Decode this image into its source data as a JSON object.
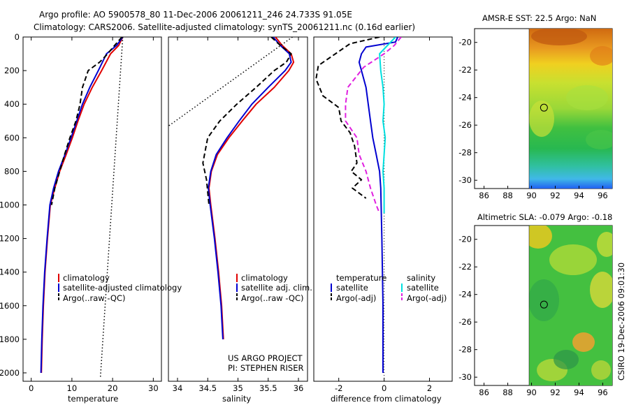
{
  "header": {
    "title_line1": "Argo profile: AO 5900578_80 11-Dec-2006 20061211_246 24.733S 91.05E",
    "title_line2": "Climatology: CARS2006. Satellite-adjusted climatology: synTS_20061211.nc (0.16d earlier)"
  },
  "side_stamp": "CSIRO 19-Dec-2006 09:01:30",
  "project_credit": [
    "US ARGO PROJECT",
    "PI: STEPHEN RISER"
  ],
  "colors": {
    "climatology": "#e00000",
    "satellite": "#0000d0",
    "argo": "#000000",
    "sal_satellite": "#00e0e0",
    "sal_argo": "#e020e0"
  },
  "chart_data": [
    {
      "id": "temperature",
      "type": "line",
      "xlabel": "temperature",
      "ylabel": "",
      "xlim": [
        -2,
        32
      ],
      "ylim": [
        2050,
        0
      ],
      "xticks": [
        0,
        10,
        20,
        30
      ],
      "yticks": [
        0,
        200,
        400,
        600,
        800,
        1000,
        1200,
        1400,
        1600,
        1800,
        2000
      ],
      "legend": [
        "climatology",
        "satellite-adjusted climatology",
        "Argo(..raw -QC)"
      ],
      "legend_placement": "lower-left",
      "series": [
        {
          "name": "climatology",
          "style": "solid",
          "color": "#e00000",
          "x": [
            22.5,
            21.5,
            19.5,
            17.3,
            15.0,
            13.0,
            11.5,
            10.1,
            8.6,
            7.0,
            5.8,
            4.7,
            4.0,
            3.4,
            3.0,
            2.7,
            2.5
          ],
          "y": [
            0,
            50,
            100,
            200,
            300,
            400,
            500,
            600,
            700,
            800,
            900,
            1000,
            1200,
            1400,
            1600,
            1800,
            2000
          ]
        },
        {
          "name": "satellite-adjusted climatology",
          "style": "solid",
          "color": "#0000d0",
          "x": [
            22.5,
            21.0,
            18.5,
            16.5,
            14.4,
            12.6,
            11.2,
            9.8,
            8.3,
            6.7,
            5.5,
            4.6,
            3.9,
            3.3,
            2.9,
            2.6,
            2.4
          ],
          "y": [
            0,
            50,
            100,
            200,
            300,
            400,
            500,
            600,
            700,
            800,
            900,
            1000,
            1200,
            1400,
            1600,
            1800,
            2000
          ]
        },
        {
          "name": "Argo(..raw -QC)",
          "style": "dashed",
          "color": "#000000",
          "x": [
            22.3,
            20.5,
            18.8,
            16.8,
            14.0,
            12.6,
            12.0,
            11.0,
            9.5,
            8.2,
            7.0,
            5.8,
            5.0
          ],
          "y": [
            0,
            50,
            100,
            150,
            200,
            300,
            400,
            500,
            600,
            700,
            800,
            900,
            1000
          ]
        },
        {
          "name": "surface-freezing reference",
          "style": "dotted",
          "color": "#000000",
          "x": [
            22.5,
            17.0
          ],
          "y": [
            0,
            2030
          ]
        }
      ]
    },
    {
      "id": "salinity",
      "type": "line",
      "xlabel": "salinity",
      "ylabel": "",
      "xlim": [
        33.85,
        36.15
      ],
      "ylim": [
        2050,
        0
      ],
      "xticks": [
        34,
        34.5,
        35,
        35.5,
        36
      ],
      "xtick_labels": [
        "34",
        "34.5",
        "35",
        "35.5",
        "36"
      ],
      "legend": [
        "climatology",
        "satellite adj. clim.",
        "Argo(..raw -QC)"
      ],
      "legend_placement": "lower-left",
      "series": [
        {
          "name": "climatology",
          "style": "solid",
          "color": "#e00000",
          "x": [
            35.62,
            35.73,
            35.88,
            35.92,
            35.84,
            35.6,
            35.3,
            35.07,
            34.85,
            34.66,
            34.56,
            34.52,
            34.55,
            34.62,
            34.68,
            34.73,
            34.76
          ],
          "y": [
            0,
            50,
            100,
            150,
            200,
            300,
            400,
            500,
            600,
            700,
            800,
            900,
            1000,
            1200,
            1400,
            1600,
            1800
          ]
        },
        {
          "name": "satellite adj. clim.",
          "style": "solid",
          "color": "#0000d0",
          "x": [
            35.58,
            35.7,
            35.85,
            35.88,
            35.78,
            35.5,
            35.23,
            35.02,
            34.82,
            34.64,
            34.55,
            34.51,
            34.54,
            34.61,
            34.67,
            34.72,
            34.75
          ],
          "y": [
            0,
            50,
            100,
            150,
            200,
            300,
            400,
            500,
            600,
            700,
            800,
            900,
            1000,
            1200,
            1400,
            1600,
            1800
          ]
        },
        {
          "name": "Argo(..raw -QC)",
          "style": "dashed",
          "color": "#000000",
          "x": [
            35.55,
            35.7,
            35.88,
            35.8,
            35.6,
            35.3,
            34.98,
            34.7,
            34.5,
            34.42,
            34.48,
            34.52
          ],
          "y": [
            0,
            50,
            100,
            150,
            200,
            300,
            400,
            500,
            600,
            750,
            850,
            1000
          ]
        },
        {
          "name": "surface reference",
          "style": "dotted",
          "color": "#000000",
          "x": [
            35.9,
            33.85
          ],
          "y": [
            0,
            530
          ]
        }
      ]
    },
    {
      "id": "difference",
      "type": "line",
      "xlabel": "difference from climatology",
      "ylabel": "",
      "xlim": [
        -3.1,
        3.0
      ],
      "ylim": [
        2050,
        0
      ],
      "xticks": [
        -2,
        0,
        2
      ],
      "legend_left": [
        "temperature",
        "satellite",
        "Argo(-adj)"
      ],
      "legend_right": [
        "salinity",
        "satellite",
        "Argo(-adj)"
      ],
      "legend_placement": "lower-center",
      "series": [
        {
          "name": "temperature satellite",
          "style": "solid",
          "color": "#0000d0",
          "x": [
            0.6,
            0.5,
            -0.8,
            -1.0,
            -1.1,
            -1.0,
            -0.8,
            -0.7,
            -0.6,
            -0.5,
            -0.35,
            -0.2,
            -0.15,
            -0.1,
            -0.05,
            -0.05
          ],
          "y": [
            0,
            30,
            60,
            100,
            150,
            200,
            300,
            400,
            500,
            600,
            700,
            800,
            900,
            1200,
            1600,
            2000
          ]
        },
        {
          "name": "temperature Argo(-adj)",
          "style": "dashed",
          "color": "#000000",
          "x": [
            -0.2,
            -1.5,
            -2.9,
            -3.0,
            -2.7,
            -2.0,
            -1.9,
            -1.5,
            -1.3,
            -1.2,
            -1.45,
            -1.0,
            -1.4,
            -0.8
          ],
          "y": [
            0,
            40,
            170,
            250,
            350,
            420,
            500,
            570,
            650,
            750,
            800,
            850,
            900,
            960
          ]
        },
        {
          "name": "salinity satellite",
          "style": "solid",
          "color": "#00e0e0",
          "x": [
            0.5,
            0.15,
            -0.2,
            -0.15,
            -0.05,
            0.0,
            -0.05,
            0.05,
            0.0,
            -0.05,
            0.0,
            0.0,
            0.0
          ],
          "y": [
            0,
            50,
            100,
            200,
            300,
            400,
            500,
            600,
            700,
            800,
            900,
            1000,
            1050
          ]
        },
        {
          "name": "salinity Argo(-adj)",
          "style": "dashed",
          "color": "#e020e0",
          "x": [
            0.75,
            0.45,
            0.0,
            -0.9,
            -1.6,
            -1.7,
            -1.7,
            -1.2,
            -1.1,
            -0.8,
            -0.6,
            -0.35,
            -0.2
          ],
          "y": [
            0,
            50,
            100,
            180,
            300,
            400,
            500,
            600,
            700,
            800,
            900,
            1000,
            1050
          ]
        }
      ]
    },
    {
      "id": "sst-map",
      "type": "heatmap",
      "title": "AMSR-E SST: 22.5  Argo: NaN",
      "xlim": [
        85.2,
        96.8
      ],
      "ylim": [
        -30.6,
        -19.0
      ],
      "xticks": [
        86,
        88,
        90,
        92,
        94,
        96
      ],
      "yticks": [
        -20,
        -22,
        -24,
        -26,
        -28,
        -30
      ],
      "data_west_limit": 90,
      "marker": {
        "lon": 91.05,
        "lat": -24.733
      },
      "field_note": "warm (orange) north, green mid, cyan/blue south"
    },
    {
      "id": "sla-map",
      "type": "heatmap",
      "title": "Altimetric SLA: -0.079  Argo: -0.18",
      "xlim": [
        85.2,
        96.8
      ],
      "ylim": [
        -30.6,
        -19.0
      ],
      "xticks": [
        86,
        88,
        90,
        92,
        94,
        96
      ],
      "yticks": [
        -20,
        -22,
        -24,
        -26,
        -28,
        -30
      ],
      "data_west_limit": 90,
      "marker": {
        "lon": 91.05,
        "lat": -24.733
      },
      "field_note": "green background with yellow/orange patches"
    }
  ]
}
